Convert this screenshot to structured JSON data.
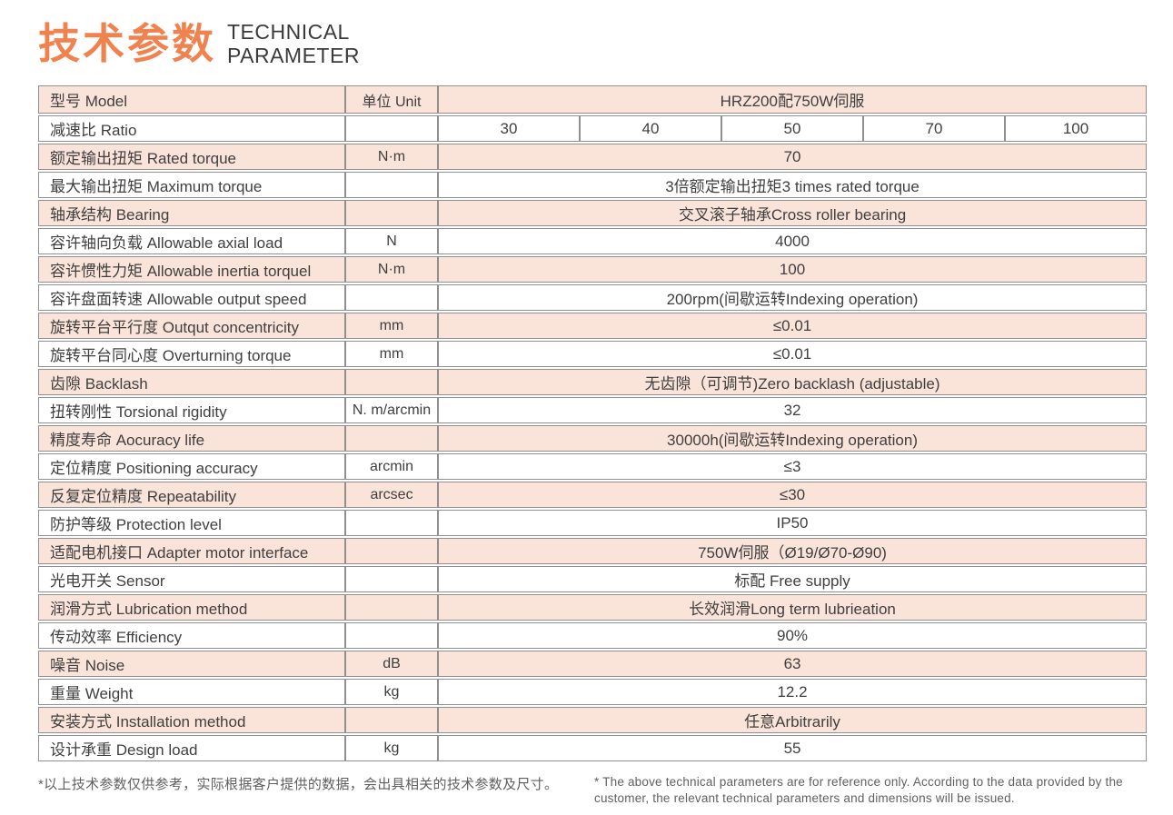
{
  "title": {
    "zh": "技术参数",
    "en_line1": "TECHNICAL",
    "en_line2": "PARAMETER"
  },
  "table": {
    "rows": [
      {
        "label": "型号 Model",
        "unit": "单位 Unit",
        "value": "HRZ200配750W伺服"
      },
      {
        "label": "减速比 Ratio",
        "unit": "",
        "values": [
          "30",
          "40",
          "50",
          "70",
          "100"
        ]
      },
      {
        "label": "额定输出扭矩 Rated torque",
        "unit": "N·m",
        "value": "70"
      },
      {
        "label": "最大输出扭矩 Maximum torque",
        "unit": "",
        "value": "3倍额定输出扭矩3 times rated torque"
      },
      {
        "label": "轴承结构 Bearing",
        "unit": "",
        "value": "交叉滚子轴承Cross roller bearing"
      },
      {
        "label": "容许轴向负载 Allowable axial load",
        "unit": "N",
        "value": "4000"
      },
      {
        "label": "容许惯性力矩 Allowable inertia torquel",
        "unit": "N·m",
        "value": "100"
      },
      {
        "label": "容许盘面转速 Allowable output speed",
        "unit": "",
        "value": "200rpm(间歇运转Indexing operation)"
      },
      {
        "label": "旋转平台平行度 Outqut concentricity",
        "unit": "mm",
        "value": "≤0.01"
      },
      {
        "label": "旋转平台同心度 Overturning torque",
        "unit": "mm",
        "value": "≤0.01"
      },
      {
        "label": "齿隙 Backlash",
        "unit": "",
        "value": "无齿隙（可调节)Zero backlash (adjustable)"
      },
      {
        "label": "扭转刚性 Torsional rigidity",
        "unit": "N. m/arcmin",
        "value": "32"
      },
      {
        "label": "精度寿命 Aocuracy life",
        "unit": "",
        "value": "30000h(间歇运转Indexing operation)"
      },
      {
        "label": "定位精度 Positioning accuracy",
        "unit": "arcmin",
        "value": "≤3"
      },
      {
        "label": "反复定位精度 Repeatability",
        "unit": "arcsec",
        "value": "≤30"
      },
      {
        "label": "防护等级 Protection level",
        "unit": "",
        "value": "IP50"
      },
      {
        "label": "适配电机接口 Adapter motor interface",
        "unit": "",
        "value": "750W伺服（Ø19/Ø70-Ø90)"
      },
      {
        "label": "光电开关 Sensor",
        "unit": "",
        "value": "标配 Free supply"
      },
      {
        "label": "润滑方式 Lubrication method",
        "unit": "",
        "value": "长效润滑Long term lubrieation"
      },
      {
        "label": "传动效率 Efficiency",
        "unit": "",
        "value": "90%"
      },
      {
        "label": "噪音 Noise",
        "unit": "dB",
        "value": "63"
      },
      {
        "label": "重量 Weight",
        "unit": "kg",
        "value": "12.2"
      },
      {
        "label": "安装方式 Installation method",
        "unit": "",
        "value": "任意Arbitrarily"
      },
      {
        "label": "设计承重 Design load",
        "unit": "kg",
        "value": "55"
      }
    ]
  },
  "footnotes": {
    "zh": "*以上技术参数仅供参考，实际根据客户提供的数据，会出具相关的技术参数及尺寸。",
    "en": "* The above technical parameters are for reference only. According to the data provided by the customer, the relevant technical parameters and dimensions will be issued."
  },
  "colors": {
    "accent_orange": "#F0824F",
    "row_pink": "#FAE3D9",
    "border_gray": "#8F8F8F",
    "text_dark": "#3F3F3F",
    "note_gray": "#5F5F5F"
  }
}
